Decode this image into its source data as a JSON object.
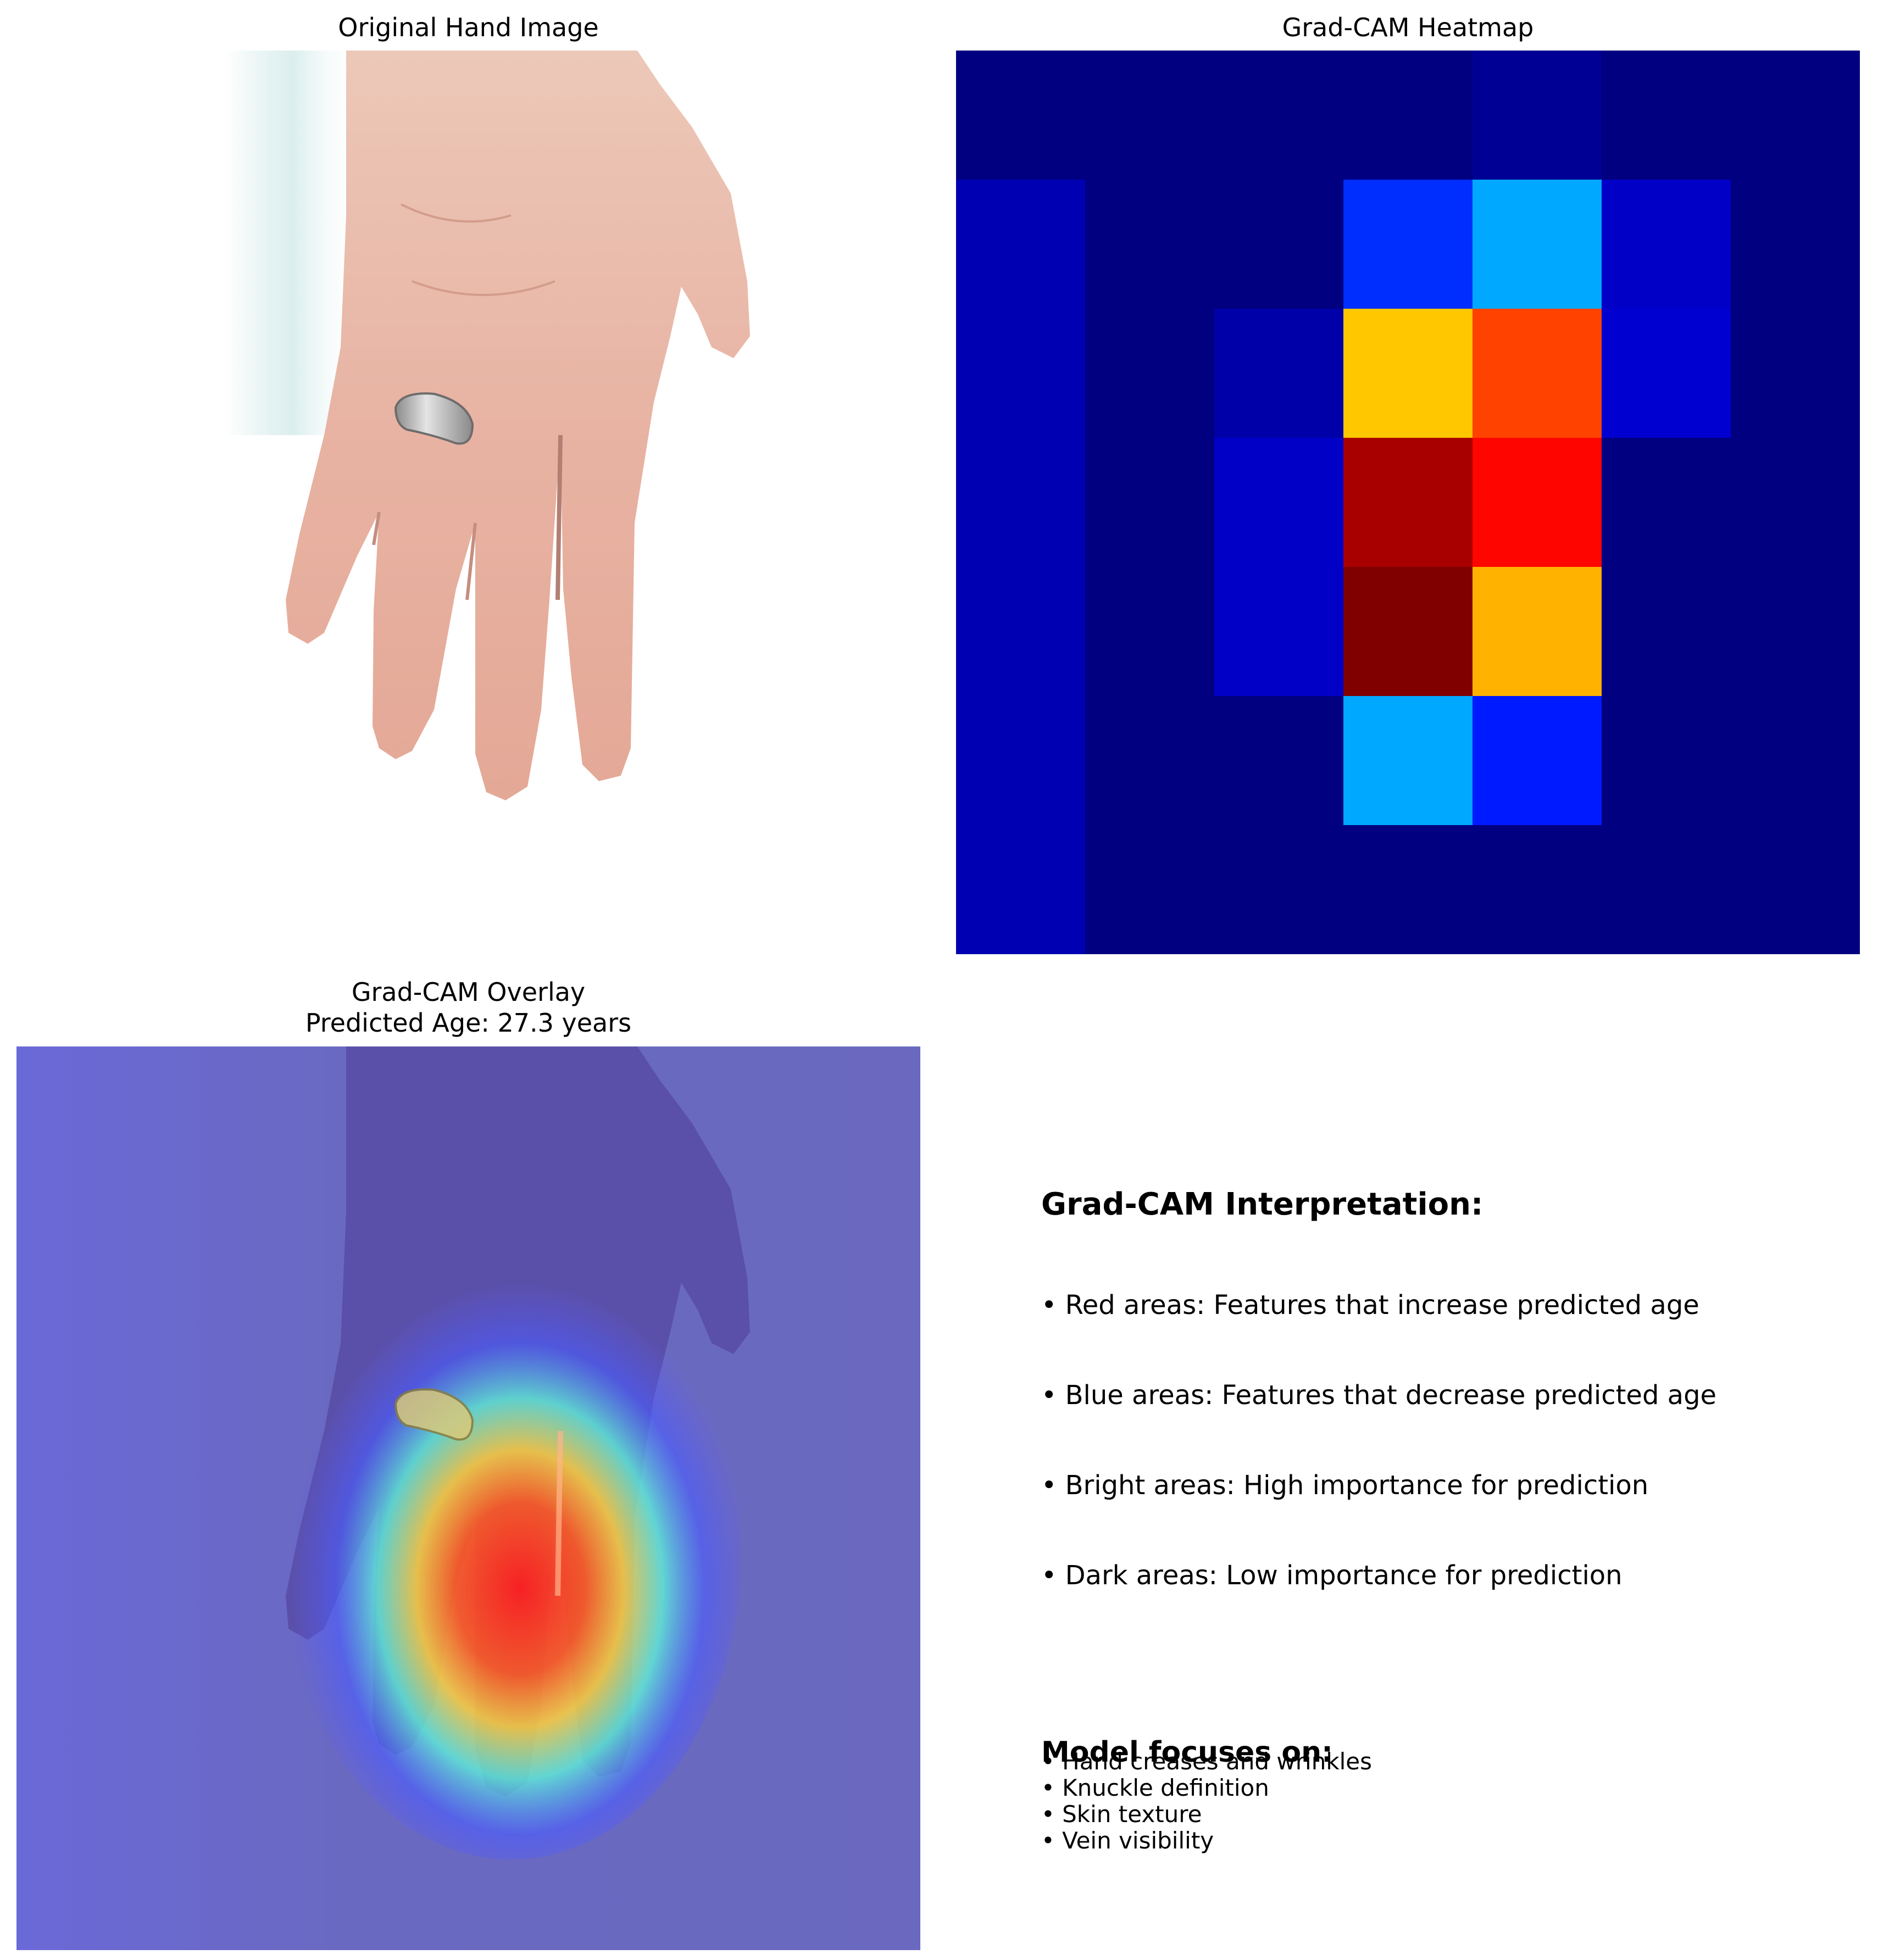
{
  "panels": {
    "original": {
      "title": "Original Hand Image"
    },
    "heatmap": {
      "title": "Grad-CAM Heatmap"
    },
    "overlay": {
      "title_line1": "Grad-CAM Overlay",
      "title_line2": "Predicted Age: 27.3 years"
    }
  },
  "interpretation": {
    "title": "Grad-CAM Interpretation:",
    "items": [
      "• Red areas: Features that increase predicted age",
      "• Blue areas: Features that decrease predicted age",
      "• Bright areas: High importance for prediction",
      "• Dark areas: Low importance for prediction"
    ],
    "focus_title": "Model focuses on:",
    "focus_items": [
      "• Hand creases and wrinkles",
      "• Knuckle definition",
      "• Skin texture",
      "• Vein visibility"
    ]
  },
  "chart_data": {
    "type": "heatmap",
    "title": "Grad-CAM Heatmap",
    "colormap": "jet",
    "rows": 7,
    "cols": 7,
    "values": [
      [
        0.0,
        0.0,
        0.0,
        0.0,
        0.02,
        0.0,
        0.0
      ],
      [
        0.05,
        0.0,
        0.0,
        0.17,
        0.29,
        0.07,
        0.0
      ],
      [
        0.05,
        0.0,
        0.04,
        0.68,
        0.81,
        0.08,
        0.0
      ],
      [
        0.05,
        0.0,
        0.07,
        0.96,
        0.87,
        0.0,
        0.0
      ],
      [
        0.05,
        0.0,
        0.07,
        1.0,
        0.7,
        0.0,
        0.0
      ],
      [
        0.05,
        0.0,
        0.0,
        0.29,
        0.15,
        0.0,
        0.0
      ],
      [
        0.05,
        0.0,
        0.0,
        0.0,
        0.0,
        0.0,
        0.0
      ]
    ],
    "predicted_age": 27.3,
    "age_unit": "years"
  }
}
